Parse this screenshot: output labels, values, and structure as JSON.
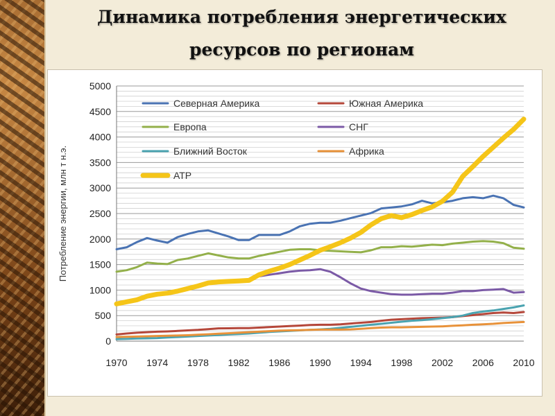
{
  "slide": {
    "title_line1": "Динамика потребления энергетических",
    "title_line2": "ресурсов по регионам"
  },
  "chart_data": {
    "type": "line",
    "ylabel": "Потребление энергии, млн т н.э.",
    "xlabel": "",
    "ylim": [
      0,
      5000
    ],
    "y_ticks": [
      0,
      500,
      1000,
      1500,
      2000,
      2500,
      3000,
      3500,
      4000,
      4500,
      5000
    ],
    "x_ticks": [
      1970,
      1974,
      1978,
      1982,
      1986,
      1990,
      1994,
      1998,
      2002,
      2006,
      2010
    ],
    "x": [
      1970,
      1971,
      1972,
      1973,
      1974,
      1975,
      1976,
      1977,
      1978,
      1979,
      1980,
      1981,
      1982,
      1983,
      1984,
      1985,
      1986,
      1987,
      1988,
      1989,
      1990,
      1991,
      1992,
      1993,
      1994,
      1995,
      1996,
      1997,
      1998,
      1999,
      2000,
      2001,
      2002,
      2003,
      2004,
      2005,
      2006,
      2007,
      2008,
      2009,
      2010
    ],
    "grid": true,
    "legend_position": "top, inside plot area, two columns",
    "series": [
      {
        "name": "Северная Америка",
        "color": "#4a73b3",
        "width": 3,
        "values": [
          1800,
          1840,
          1940,
          2020,
          1970,
          1930,
          2040,
          2100,
          2150,
          2170,
          2110,
          2050,
          1980,
          1980,
          2080,
          2080,
          2080,
          2150,
          2250,
          2300,
          2320,
          2320,
          2360,
          2410,
          2460,
          2510,
          2600,
          2620,
          2640,
          2680,
          2750,
          2700,
          2720,
          2750,
          2800,
          2820,
          2800,
          2850,
          2800,
          2670,
          2620
        ]
      },
      {
        "name": "Южная Америка",
        "color": "#b5473a",
        "width": 3,
        "values": [
          130,
          150,
          165,
          175,
          185,
          190,
          200,
          210,
          220,
          235,
          250,
          252,
          255,
          255,
          265,
          275,
          285,
          295,
          305,
          315,
          320,
          320,
          330,
          345,
          360,
          375,
          400,
          420,
          430,
          440,
          450,
          455,
          460,
          470,
          490,
          510,
          530,
          550,
          560,
          550,
          570
        ]
      },
      {
        "name": "Европа",
        "color": "#93b04a",
        "width": 3,
        "values": [
          1360,
          1390,
          1450,
          1540,
          1520,
          1510,
          1590,
          1620,
          1670,
          1720,
          1680,
          1640,
          1620,
          1620,
          1670,
          1710,
          1750,
          1790,
          1800,
          1800,
          1780,
          1770,
          1760,
          1750,
          1740,
          1780,
          1840,
          1840,
          1860,
          1850,
          1870,
          1890,
          1880,
          1910,
          1930,
          1950,
          1960,
          1950,
          1920,
          1830,
          1810
        ]
      },
      {
        "name": "СНГ",
        "color": "#7b5aa6",
        "width": 3,
        "values": [
          740,
          790,
          820,
          860,
          900,
          950,
          1000,
          1050,
          1100,
          1140,
          1160,
          1170,
          1180,
          1210,
          1270,
          1300,
          1330,
          1360,
          1380,
          1390,
          1410,
          1360,
          1250,
          1130,
          1030,
          980,
          950,
          920,
          910,
          910,
          920,
          930,
          930,
          950,
          980,
          980,
          1000,
          1010,
          1020,
          950,
          960
        ]
      },
      {
        "name": "Ближний Восток",
        "color": "#4aa3b0",
        "width": 3,
        "values": [
          40,
          45,
          50,
          55,
          60,
          70,
          80,
          90,
          100,
          110,
          120,
          130,
          140,
          150,
          165,
          180,
          190,
          200,
          210,
          220,
          230,
          240,
          260,
          280,
          300,
          320,
          340,
          360,
          380,
          400,
          410,
          430,
          450,
          470,
          500,
          550,
          580,
          600,
          630,
          660,
          700
        ]
      },
      {
        "name": "Африка",
        "color": "#e8923a",
        "width": 3,
        "values": [
          80,
          85,
          90,
          95,
          100,
          105,
          110,
          115,
          125,
          135,
          145,
          155,
          165,
          175,
          185,
          195,
          205,
          210,
          215,
          220,
          225,
          225,
          225,
          230,
          240,
          255,
          265,
          270,
          270,
          275,
          280,
          285,
          290,
          300,
          310,
          320,
          330,
          340,
          355,
          365,
          375
        ]
      },
      {
        "name": "АТР",
        "color": "#f5c518",
        "width": 7,
        "values": [
          730,
          770,
          810,
          880,
          920,
          940,
          980,
          1030,
          1080,
          1140,
          1160,
          1170,
          1180,
          1190,
          1300,
          1370,
          1430,
          1500,
          1590,
          1680,
          1780,
          1850,
          1930,
          2020,
          2130,
          2280,
          2400,
          2460,
          2420,
          2480,
          2560,
          2630,
          2740,
          2920,
          3230,
          3420,
          3620,
          3800,
          3980,
          4150,
          4350
        ]
      }
    ]
  }
}
